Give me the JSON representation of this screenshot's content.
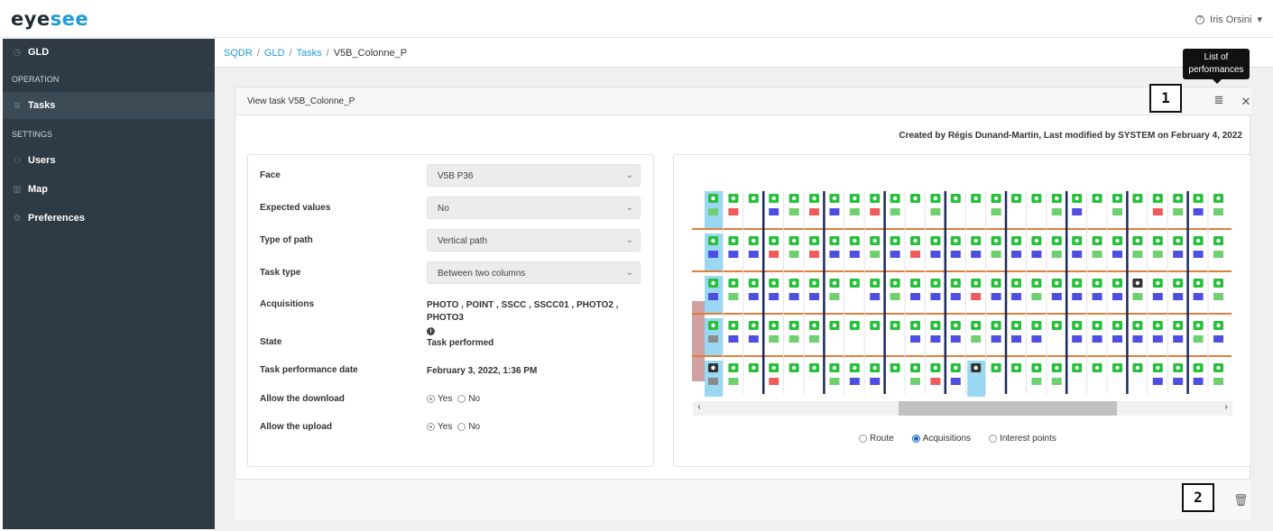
{
  "app": {
    "logo": {
      "part1": "eye",
      "part2": "see"
    },
    "user_name": "Iris Orsini",
    "user_caret": "▾"
  },
  "sidebar": {
    "top_item": {
      "label": "GLD",
      "icon": "clock-icon"
    },
    "sections": [
      {
        "title": "OPERATION"
      },
      {
        "title": "SETTINGS"
      }
    ],
    "items": [
      {
        "label": "Tasks",
        "icon": "wifi-icon",
        "active": true
      },
      {
        "label": "Users",
        "icon": "users-icon"
      },
      {
        "label": "Map",
        "icon": "map-icon"
      },
      {
        "label": "Preferences",
        "icon": "gear-icon"
      }
    ]
  },
  "breadcrumb": [
    "SQDR",
    "GLD",
    "Tasks",
    "V5B_Colonne_P"
  ],
  "panel": {
    "title": "View task V5B_Colonne_P",
    "tooltip": "List of performances",
    "marker1": "1",
    "marker2": "2",
    "meta": "Created by Régis Dunand-Martin, Last modified by SYSTEM on February 4, 2022"
  },
  "form": {
    "face": {
      "label": "Face",
      "value": "V5B P36"
    },
    "expected": {
      "label": "Expected values",
      "value": "No"
    },
    "path_type": {
      "label": "Type of path",
      "value": "Vertical path"
    },
    "task_type": {
      "label": "Task type",
      "value": "Between two columns"
    },
    "acquisitions": {
      "label": "Acquisitions",
      "value": "PHOTO , POINT , SSCC , SSCC01 , PHOTO2 , PHOTO3"
    },
    "state": {
      "label": "State",
      "value": "Task performed"
    },
    "perf_date": {
      "label": "Task performance date",
      "value": "February 3, 2022, 1:36 PM"
    },
    "download": {
      "label": "Allow the download",
      "yes": "Yes",
      "no": "No",
      "selected": "yes"
    },
    "upload": {
      "label": "Allow the upload",
      "yes": "Yes",
      "no": "No",
      "selected": "yes"
    }
  },
  "view_options": {
    "route": "Route",
    "acquisitions": "Acquisitions",
    "interest_points": "Interest points",
    "selected": "acquisitions"
  },
  "colors": {
    "sidebar_bg": "#2f3b44",
    "accent": "#1e9bd7",
    "camera_green": "#27c03a",
    "block_blue": "#4e4ee0",
    "block_green": "#6fd06f",
    "block_red": "#ef5a5a",
    "block_gray": "#8a8a8a",
    "shelf_line": "#e07f3a",
    "column_line": "#1c2a5a"
  },
  "shelf_grid": {
    "rows": [
      "GRXBGRBGRGXGXXGXXGBXGXRGBGGGBGRBBG",
      "BBBRGRBBGBRBBBGBBGBGBGGBBGGXGBB",
      "BGBBBBGXBGBBBRBBGBBBBGBBBGBBYXGBBGBR",
      "YBBGGGXXXXBBBGBBBXBBBBBBGBBGB",
      "YGXRXXGBBXGRBXXXGGXXXXBBBGGBRG"
    ],
    "highlight_cells": [
      [
        0,
        0
      ],
      [
        1,
        0
      ],
      [
        2,
        0
      ],
      [
        3,
        0
      ],
      [
        4,
        0
      ],
      [
        4,
        13
      ]
    ]
  }
}
